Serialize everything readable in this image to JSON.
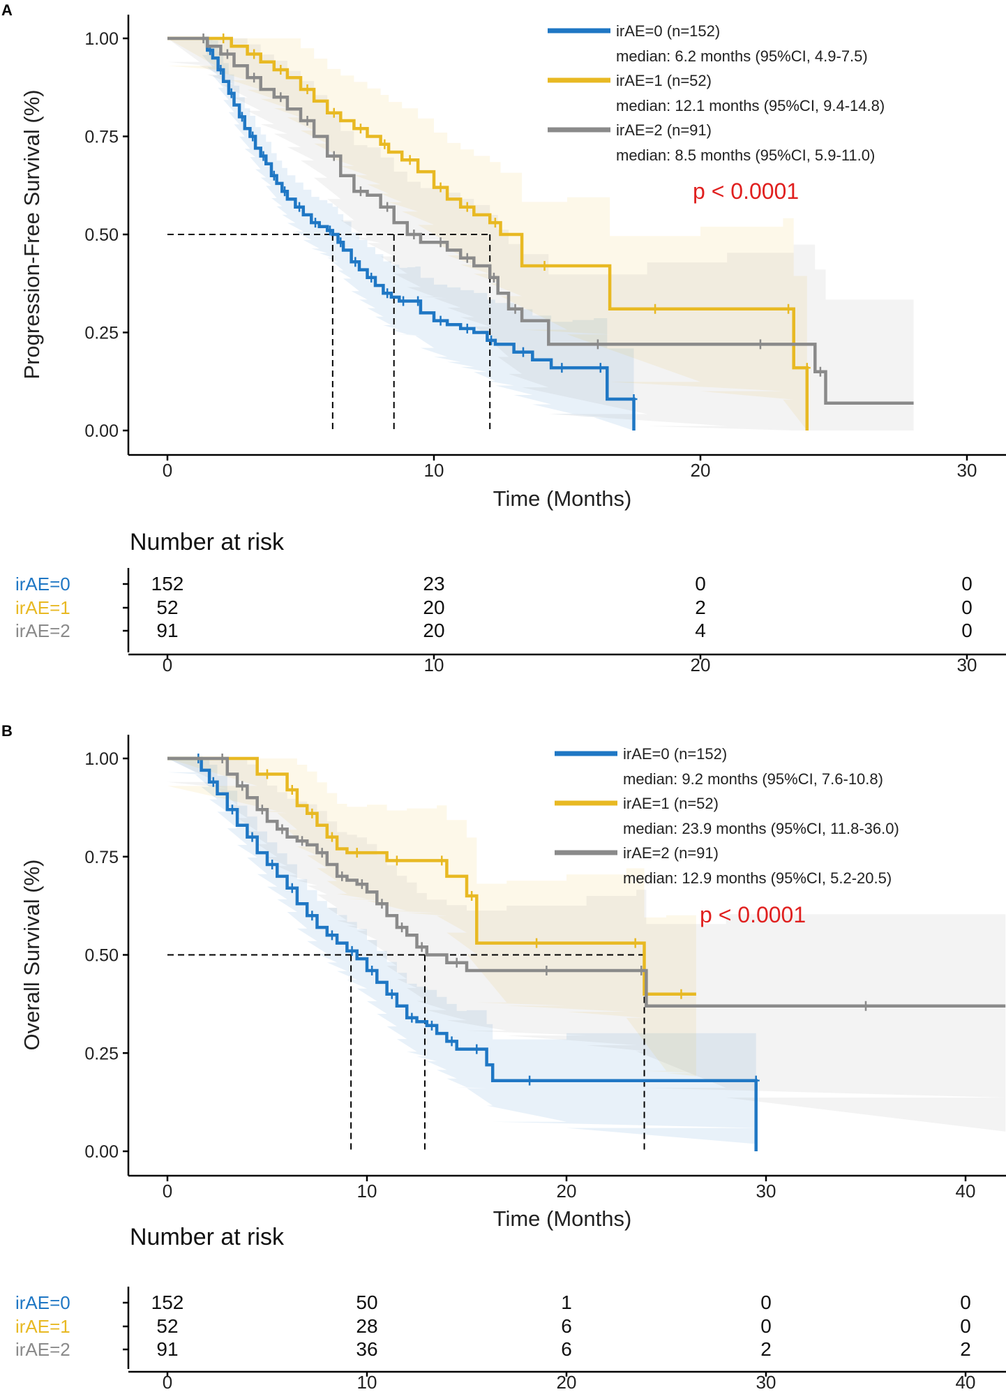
{
  "colors": {
    "irae0": "#1f77c4",
    "irae1": "#e8b923",
    "irae2": "#8a8a8a",
    "pvalue": "#e0201f"
  },
  "chart_data": [
    {
      "type": "line",
      "panel": "A",
      "ylabel": "Progression-Free Survival (%)",
      "xlabel": "Time (Months)",
      "xlim": [
        0,
        31.5
      ],
      "ylim": [
        0,
        1
      ],
      "xticks": [
        "0",
        "10",
        "20",
        "30"
      ],
      "yticks": [
        "0.00",
        "0.25",
        "0.50",
        "0.75",
        "1.00"
      ],
      "pvalue": "p < 0.0001",
      "legend": [
        {
          "label": "irAE=0 (n=152)",
          "median": "median: 6.2 months (95%CI, 4.9-7.5)"
        },
        {
          "label": "irAE=1 (n=52)",
          "median": "median: 12.1 months (95%CI, 9.4-14.8)"
        },
        {
          "label": "irAE=2 (n=91)",
          "median": "median: 8.5 months (95%CI, 5.9-11.0)"
        }
      ],
      "median_lines": [
        6.2,
        8.5,
        12.1
      ],
      "series": [
        {
          "name": "irAE=0",
          "color_key": "irae0",
          "x": [
            1.3,
            1.5,
            1.7,
            1.9,
            2.1,
            2.3,
            2.5,
            2.7,
            2.9,
            3.1,
            3.3,
            3.5,
            3.7,
            3.9,
            4.1,
            4.3,
            4.5,
            4.8,
            5.1,
            5.4,
            5.7,
            6.0,
            6.2,
            6.4,
            6.6,
            6.9,
            7.2,
            7.5,
            7.8,
            8.1,
            8.4,
            8.7,
            9.0,
            9.3,
            9.5,
            10.0,
            10.5,
            11.0,
            11.5,
            12.0,
            12.3,
            13.0,
            13.7,
            14.4,
            15.2,
            16.0,
            16.5,
            17.5,
            17.5
          ],
          "y": [
            1.0,
            0.97,
            0.95,
            0.92,
            0.89,
            0.86,
            0.83,
            0.8,
            0.77,
            0.75,
            0.72,
            0.7,
            0.68,
            0.65,
            0.63,
            0.61,
            0.59,
            0.57,
            0.55,
            0.53,
            0.52,
            0.51,
            0.5,
            0.48,
            0.46,
            0.43,
            0.41,
            0.39,
            0.37,
            0.35,
            0.34,
            0.33,
            0.33,
            0.33,
            0.3,
            0.28,
            0.27,
            0.26,
            0.25,
            0.23,
            0.22,
            0.2,
            0.18,
            0.16,
            0.16,
            0.16,
            0.08,
            0.08,
            0.0
          ]
        },
        {
          "name": "irAE=1",
          "color_key": "irae1",
          "x": [
            0,
            1.8,
            2.4,
            3.0,
            3.5,
            4.0,
            4.5,
            5.0,
            5.5,
            6.0,
            6.5,
            7.0,
            7.5,
            8.0,
            8.3,
            8.8,
            9.4,
            10.0,
            10.5,
            11.0,
            11.5,
            12.1,
            12.5,
            13.3,
            15.0,
            16.6,
            20.0,
            23.1,
            23.5,
            24.0,
            24.0
          ],
          "y": [
            1.0,
            1.0,
            0.98,
            0.96,
            0.94,
            0.92,
            0.9,
            0.87,
            0.84,
            0.81,
            0.79,
            0.77,
            0.75,
            0.73,
            0.71,
            0.69,
            0.66,
            0.62,
            0.59,
            0.57,
            0.55,
            0.53,
            0.5,
            0.42,
            0.42,
            0.31,
            0.31,
            0.31,
            0.16,
            0.16,
            0.0
          ]
        },
        {
          "name": "irAE=2",
          "color_key": "irae2",
          "x": [
            0,
            1.2,
            1.5,
            2.0,
            2.5,
            3.0,
            3.5,
            4.0,
            4.5,
            5.0,
            5.5,
            6.0,
            6.5,
            7.0,
            7.5,
            8.0,
            8.5,
            9.0,
            9.5,
            10.0,
            10.5,
            11.0,
            11.5,
            12.1,
            12.4,
            12.8,
            13.3,
            14.3,
            18.0,
            21.0,
            23.5,
            24.3,
            24.7,
            28.0
          ],
          "y": [
            1.0,
            1.0,
            0.98,
            0.96,
            0.93,
            0.9,
            0.87,
            0.85,
            0.82,
            0.79,
            0.75,
            0.7,
            0.65,
            0.61,
            0.6,
            0.57,
            0.53,
            0.5,
            0.48,
            0.48,
            0.46,
            0.44,
            0.42,
            0.39,
            0.35,
            0.31,
            0.28,
            0.22,
            0.22,
            0.22,
            0.22,
            0.15,
            0.07,
            0.07
          ]
        }
      ],
      "risk_table": {
        "title": "Number at risk",
        "rows": [
          {
            "label": "irAE=0",
            "color_key": "irae0",
            "values": [
              "152",
              "23",
              "0",
              "0"
            ]
          },
          {
            "label": "irAE=1",
            "color_key": "irae1",
            "values": [
              "52",
              "20",
              "2",
              "0"
            ]
          },
          {
            "label": "irAE=2",
            "color_key": "irae2",
            "values": [
              "91",
              "20",
              "4",
              "0"
            ]
          }
        ],
        "times": [
          0,
          10,
          20,
          30
        ]
      }
    },
    {
      "type": "line",
      "panel": "B",
      "ylabel": "Overall Survival (%)",
      "xlabel": "Time (Months)",
      "xlim": [
        0,
        42
      ],
      "ylim": [
        0,
        1
      ],
      "xticks": [
        "0",
        "10",
        "20",
        "30",
        "40"
      ],
      "yticks": [
        "0.00",
        "0.25",
        "0.50",
        "0.75",
        "1.00"
      ],
      "pvalue": "p < 0.0001",
      "legend": [
        {
          "label": "irAE=0 (n=152)",
          "median": "median: 9.2 months (95%CI, 7.6-10.8)"
        },
        {
          "label": "irAE=1 (n=52)",
          "median": "median: 23.9 months (95%CI, 11.8-36.0)"
        },
        {
          "label": "irAE=2 (n=91)",
          "median": "median: 12.9 months (95%CI, 5.2-20.5)"
        }
      ],
      "median_lines": [
        9.2,
        12.9,
        23.9
      ],
      "series": [
        {
          "name": "irAE=0",
          "color_key": "irae0",
          "x": [
            0,
            1.4,
            1.7,
            2.1,
            2.5,
            3.0,
            3.5,
            4.0,
            4.5,
            5.0,
            5.5,
            6.0,
            6.5,
            7.0,
            7.5,
            8.0,
            8.5,
            9.0,
            9.5,
            10.0,
            10.5,
            11.0,
            11.5,
            12.0,
            12.5,
            13.0,
            13.5,
            14.0,
            14.5,
            15.0,
            16.0,
            16.3,
            20.0,
            29.5,
            29.5
          ],
          "y": [
            1.0,
            1.0,
            0.97,
            0.94,
            0.91,
            0.87,
            0.83,
            0.8,
            0.76,
            0.73,
            0.7,
            0.67,
            0.63,
            0.6,
            0.57,
            0.55,
            0.53,
            0.51,
            0.49,
            0.46,
            0.43,
            0.4,
            0.37,
            0.34,
            0.33,
            0.32,
            0.3,
            0.28,
            0.26,
            0.26,
            0.22,
            0.18,
            0.18,
            0.18,
            0.0
          ]
        },
        {
          "name": "irAE=1",
          "color_key": "irae1",
          "x": [
            0,
            4.5,
            5.5,
            6.0,
            6.5,
            7.0,
            7.5,
            8.0,
            8.5,
            9.0,
            10.0,
            11.0,
            12.0,
            13.5,
            14.0,
            15.0,
            15.5,
            17.0,
            20.0,
            23.0,
            23.9,
            25.0,
            26.5
          ],
          "y": [
            1.0,
            0.96,
            0.96,
            0.92,
            0.88,
            0.86,
            0.83,
            0.8,
            0.77,
            0.76,
            0.76,
            0.74,
            0.74,
            0.74,
            0.7,
            0.65,
            0.53,
            0.53,
            0.53,
            0.53,
            0.4,
            0.4,
            0.4
          ]
        },
        {
          "name": "irAE=2",
          "color_key": "irae2",
          "x": [
            0,
            2.5,
            3.0,
            3.5,
            4.0,
            4.5,
            5.0,
            5.5,
            6.0,
            6.5,
            7.0,
            7.5,
            8.0,
            8.5,
            9.0,
            9.5,
            10.0,
            10.5,
            11.0,
            11.5,
            12.0,
            12.5,
            13.0,
            14.0,
            15.0,
            17.0,
            21.0,
            23.5,
            24.0,
            28.0,
            42.0
          ],
          "y": [
            1.0,
            1.0,
            0.96,
            0.93,
            0.9,
            0.87,
            0.84,
            0.82,
            0.8,
            0.79,
            0.78,
            0.76,
            0.73,
            0.7,
            0.69,
            0.68,
            0.66,
            0.63,
            0.6,
            0.57,
            0.55,
            0.52,
            0.5,
            0.48,
            0.46,
            0.46,
            0.46,
            0.46,
            0.37,
            0.37,
            0.37
          ]
        }
      ],
      "risk_table": {
        "title": "Number at risk",
        "rows": [
          {
            "label": "irAE=0",
            "color_key": "irae0",
            "values": [
              "152",
              "50",
              "1",
              "0",
              "0"
            ]
          },
          {
            "label": "irAE=1",
            "color_key": "irae1",
            "values": [
              "52",
              "28",
              "6",
              "0",
              "0"
            ]
          },
          {
            "label": "irAE=2",
            "color_key": "irae2",
            "values": [
              "91",
              "36",
              "6",
              "2",
              "2"
            ]
          }
        ],
        "times": [
          0,
          10,
          20,
          30,
          40
        ]
      }
    }
  ]
}
